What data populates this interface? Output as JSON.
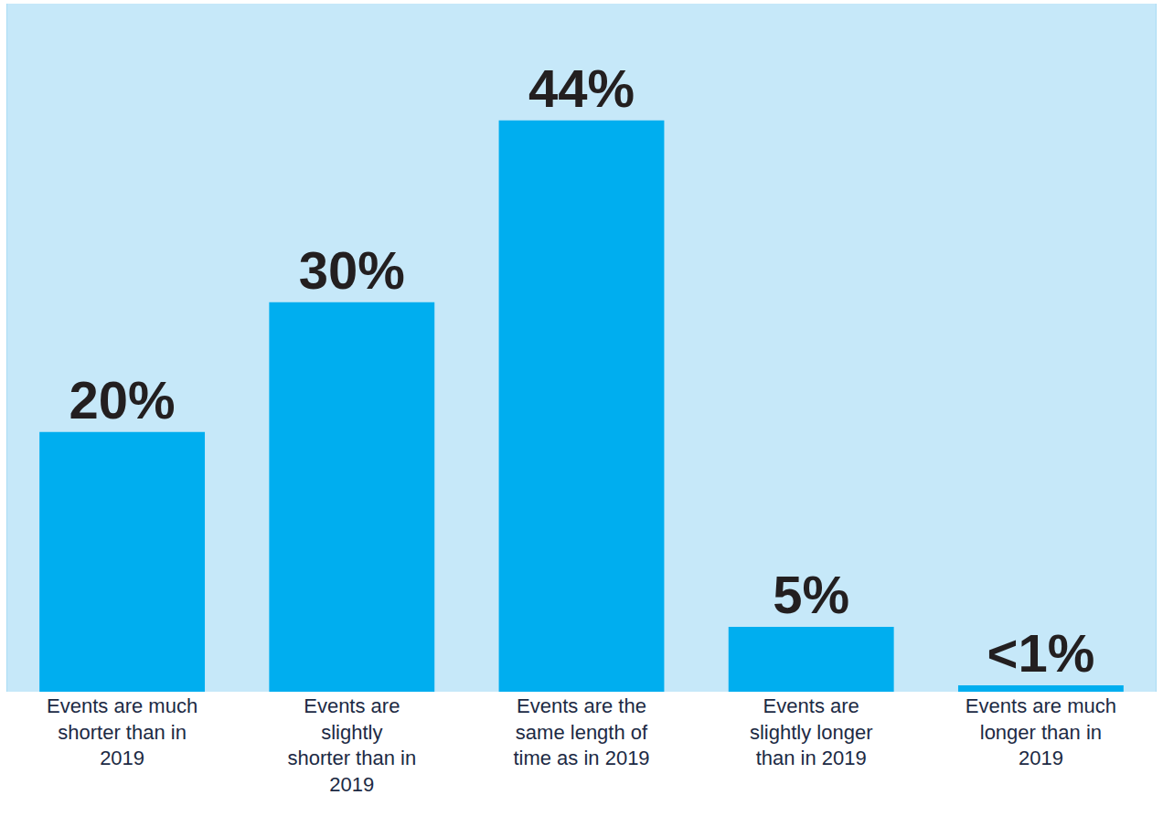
{
  "chart_data": {
    "type": "bar",
    "categories": [
      "Events are much shorter than in 2019",
      "Events are slightly shorter than in 2019",
      "Events are the same length of time as in 2019",
      "Events are slightly longer than in 2019",
      "Events are much longer than in 2019"
    ],
    "values": [
      20,
      30,
      44,
      5,
      0.5
    ],
    "value_labels": [
      "20%",
      "30%",
      "44%",
      "5%",
      "<1%"
    ],
    "data_labels": true,
    "color": "#00aeef",
    "ylim": [
      0,
      53
    ],
    "yticks": [],
    "grid": false,
    "tick_labels": "x"
  }
}
